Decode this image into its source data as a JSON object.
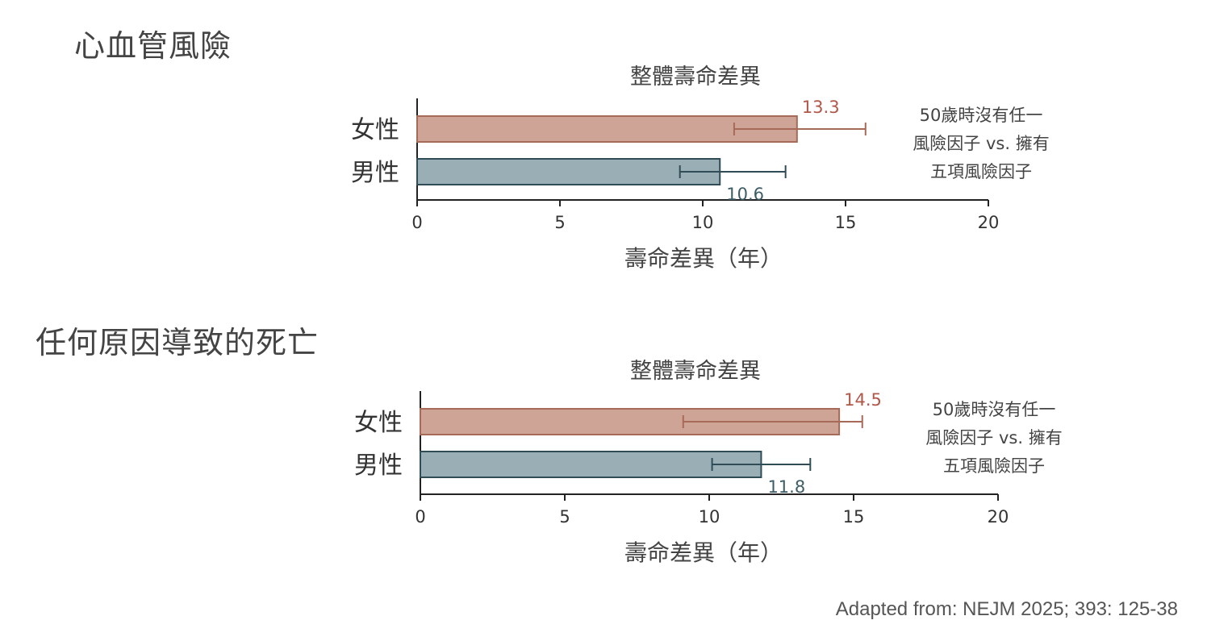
{
  "sections": [
    {
      "heading": "心血管風險"
    },
    {
      "heading": "任何原因導致的死亡"
    }
  ],
  "footer": "Adapted from: NEJM 2025; 393: 125-38",
  "colors": {
    "female_fill": "#cda496",
    "female_border": "#a86a58",
    "female_label": "#b0574a",
    "male_fill": "#9aaeb6",
    "male_border": "#2f4c57",
    "male_label": "#3d5d66",
    "axis": "#222222",
    "text": "#555555"
  },
  "chart_data": [
    {
      "type": "bar",
      "orientation": "horizontal",
      "title": "整體壽命差異",
      "xlabel": "壽命差異（年）",
      "categories": [
        "女性",
        "男性"
      ],
      "values": [
        13.3,
        10.6
      ],
      "value_labels": [
        "13.3",
        "10.6"
      ],
      "error_bars": [
        [
          11.1,
          15.7
        ],
        [
          9.2,
          12.9
        ]
      ],
      "xlim": [
        0,
        20
      ],
      "xticks": [
        0,
        5,
        10,
        15,
        20
      ],
      "annotation_lines": [
        "50歲時沒有任一",
        "風險因子 vs. 擁有",
        "五項風險因子"
      ],
      "grid": false
    },
    {
      "type": "bar",
      "orientation": "horizontal",
      "title": "整體壽命差異",
      "xlabel": "壽命差異（年）",
      "categories": [
        "女性",
        "男性"
      ],
      "values": [
        14.5,
        11.8
      ],
      "value_labels": [
        "14.5",
        "11.8"
      ],
      "error_bars": [
        [
          9.1,
          15.3
        ],
        [
          10.1,
          13.5
        ]
      ],
      "xlim": [
        0,
        20
      ],
      "xticks": [
        0,
        5,
        10,
        15,
        20
      ],
      "annotation_lines": [
        "50歲時沒有任一",
        "風險因子 vs. 擁有",
        "五項風險因子"
      ],
      "grid": false
    }
  ]
}
